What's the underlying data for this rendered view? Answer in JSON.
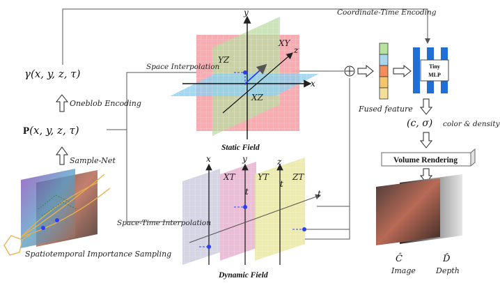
{
  "labels": {
    "coordinate_time_encoding": "Coordinate-Time Encoding",
    "space_interpolation": "Space Interpolation",
    "space_time_interpolation": "Space-Time Interpolation",
    "oneblob_encoding": "Oneblob Encoding",
    "sample_net": "Sample-Net",
    "spatiotemporal_sampling": "Spatiotemporal Importance Sampling",
    "static_field": "Static Field",
    "dynamic_field": "Dynamic Field",
    "fused_feature": "Fused feature",
    "tiny_mlp_line1": "Tiny",
    "tiny_mlp_line2": "MLP",
    "volume_rendering": "Volume Rendering",
    "image": "Image",
    "depth": "Depth"
  },
  "math": {
    "gamma": "γ(x, y, z, τ)",
    "P_bold": "P",
    "P_args": "(x, y, z, τ)",
    "c_sigma": "(c, σ)",
    "color_density": "color & density",
    "c_hat": "Ĉ",
    "d_hat": "D̂"
  },
  "planes": {
    "static": [
      "XY",
      "YZ",
      "XZ"
    ],
    "dynamic": [
      "XT",
      "YT",
      "ZT"
    ]
  },
  "axes": {
    "x": "x",
    "y": "y",
    "z": "z",
    "t": "t"
  },
  "colors": {
    "xy_plane": "#f7a3a8",
    "yz_plane": "#b9dca0",
    "xz_plane": "#8fd0f0",
    "xt_plane": "#c9c9df",
    "yt_plane": "#e9b2d0",
    "zt_plane": "#e8e79a",
    "mlp_blue": "#1f6fd6",
    "sample_point": "#2a3ff5"
  },
  "fused_feature_colors": [
    "#b8e2a0",
    "#a8d6ea",
    "#f28c5a",
    "#f4c56c",
    "#f3e098"
  ]
}
